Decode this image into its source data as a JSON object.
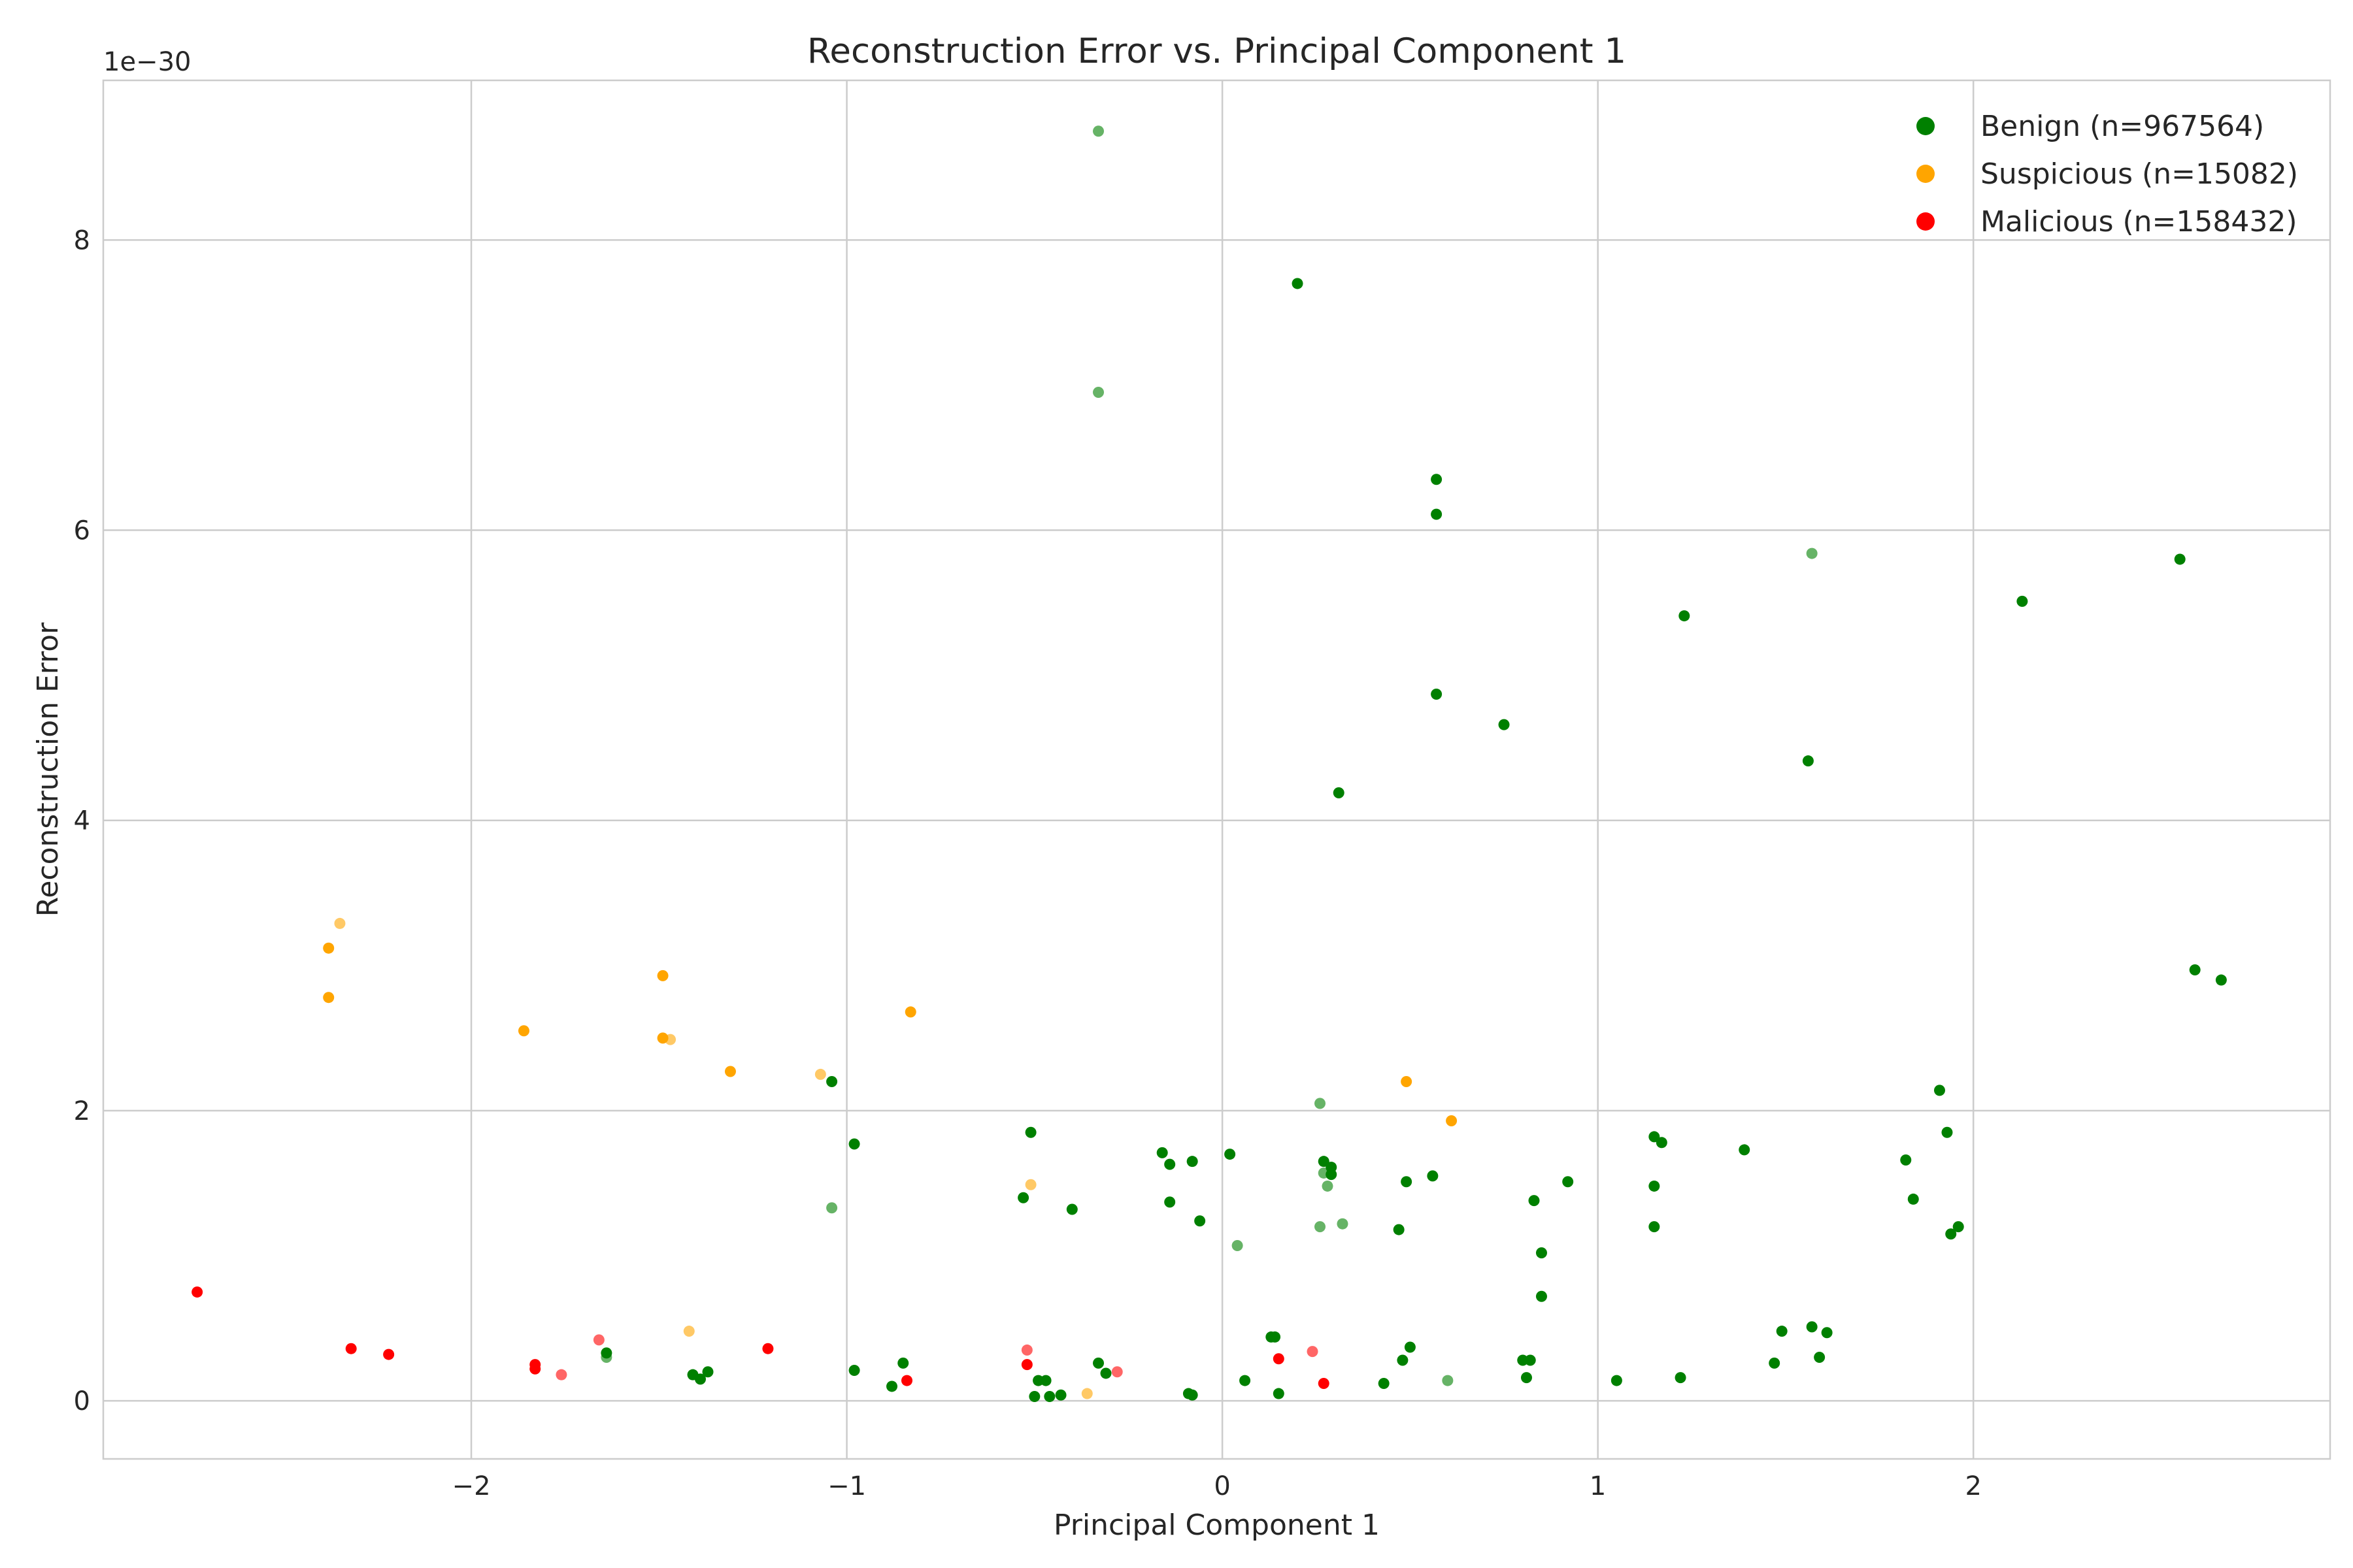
{
  "chart_data": {
    "type": "scatter",
    "title": "Reconstruction Error vs. Principal Component 1",
    "xlabel": "Principal Component 1",
    "ylabel": "Reconstruction Error",
    "y_offset_label": "1e−30",
    "xlim": [
      -2.98,
      2.95
    ],
    "ylim": [
      -0.4,
      9.1
    ],
    "x_ticks": [
      {
        "value": -2,
        "label": "−2"
      },
      {
        "value": -1,
        "label": "−1"
      },
      {
        "value": 0,
        "label": "0"
      },
      {
        "value": 1,
        "label": "1"
      },
      {
        "value": 2,
        "label": "2"
      }
    ],
    "y_ticks": [
      {
        "value": 0,
        "label": "0"
      },
      {
        "value": 2,
        "label": "2"
      },
      {
        "value": 4,
        "label": "4"
      },
      {
        "value": 6,
        "label": "6"
      },
      {
        "value": 8,
        "label": "8"
      }
    ],
    "grid": true,
    "legend_position": "top-right",
    "series": [
      {
        "name": "Benign (n=967564)",
        "color": "#008000",
        "points": [
          [
            -0.33,
            8.75,
            0.6
          ],
          [
            0.2,
            7.7,
            1
          ],
          [
            -0.33,
            6.95,
            0.6
          ],
          [
            0.57,
            6.35,
            1
          ],
          [
            0.57,
            6.11,
            1
          ],
          [
            1.57,
            5.84,
            0.6
          ],
          [
            2.55,
            5.8,
            1
          ],
          [
            2.13,
            5.51,
            1
          ],
          [
            1.23,
            5.41,
            1
          ],
          [
            0.57,
            4.87,
            1
          ],
          [
            0.75,
            4.66,
            1
          ],
          [
            1.56,
            4.41,
            1
          ],
          [
            0.31,
            4.19,
            1
          ],
          [
            2.59,
            2.97,
            1
          ],
          [
            2.66,
            2.9,
            1
          ],
          [
            -1.04,
            2.2,
            1
          ],
          [
            1.91,
            2.14,
            1
          ],
          [
            0.26,
            2.05,
            0.6
          ],
          [
            -0.51,
            1.85,
            1
          ],
          [
            1.93,
            1.85,
            1
          ],
          [
            1.15,
            1.82,
            1
          ],
          [
            1.17,
            1.78,
            1
          ],
          [
            -0.98,
            1.77,
            1
          ],
          [
            1.39,
            1.73,
            1
          ],
          [
            -0.16,
            1.71,
            1
          ],
          [
            0.02,
            1.7,
            1
          ],
          [
            -0.08,
            1.65,
            1
          ],
          [
            0.27,
            1.65,
            1
          ],
          [
            -0.14,
            1.63,
            1
          ],
          [
            1.82,
            1.66,
            1
          ],
          [
            0.29,
            1.61,
            1
          ],
          [
            0.27,
            1.57,
            0.6
          ],
          [
            0.29,
            1.56,
            1
          ],
          [
            0.56,
            1.55,
            1
          ],
          [
            0.49,
            1.51,
            1
          ],
          [
            0.92,
            1.51,
            1
          ],
          [
            1.15,
            1.48,
            1
          ],
          [
            0.28,
            1.48,
            0.6
          ],
          [
            -0.53,
            1.4,
            1
          ],
          [
            0.83,
            1.38,
            1
          ],
          [
            1.84,
            1.39,
            1
          ],
          [
            -0.14,
            1.37,
            1
          ],
          [
            -1.04,
            1.33,
            0.6
          ],
          [
            -0.4,
            1.32,
            1
          ],
          [
            -0.06,
            1.24,
            1
          ],
          [
            0.32,
            1.22,
            0.6
          ],
          [
            0.26,
            1.2,
            0.6
          ],
          [
            1.15,
            1.2,
            1
          ],
          [
            1.96,
            1.2,
            1
          ],
          [
            0.47,
            1.18,
            1
          ],
          [
            1.94,
            1.15,
            1
          ],
          [
            0.04,
            1.07,
            0.6
          ],
          [
            0.85,
            1.02,
            1
          ],
          [
            0.85,
            0.72,
            1
          ],
          [
            1.57,
            0.51,
            1
          ],
          [
            1.49,
            0.48,
            1
          ],
          [
            1.61,
            0.47,
            1
          ],
          [
            0.13,
            0.44,
            1
          ],
          [
            0.14,
            0.44,
            1
          ],
          [
            0.5,
            0.37,
            1
          ],
          [
            -1.64,
            0.33,
            1
          ],
          [
            -1.64,
            0.3,
            0.6
          ],
          [
            1.59,
            0.3,
            1
          ],
          [
            0.48,
            0.28,
            1
          ],
          [
            0.8,
            0.28,
            1
          ],
          [
            0.82,
            0.28,
            1
          ],
          [
            1.47,
            0.26,
            1
          ],
          [
            -0.85,
            0.26,
            1
          ],
          [
            -0.33,
            0.26,
            1
          ],
          [
            -0.98,
            0.21,
            1
          ],
          [
            -1.37,
            0.2,
            1
          ],
          [
            -1.41,
            0.18,
            1
          ],
          [
            -0.31,
            0.19,
            1
          ],
          [
            -1.39,
            0.15,
            1
          ],
          [
            0.81,
            0.16,
            1
          ],
          [
            1.22,
            0.16,
            1
          ],
          [
            -0.49,
            0.14,
            1
          ],
          [
            -0.47,
            0.14,
            1
          ],
          [
            0.06,
            0.14,
            1
          ],
          [
            0.6,
            0.14,
            0.6
          ],
          [
            1.05,
            0.14,
            1
          ],
          [
            0.43,
            0.12,
            1
          ],
          [
            -0.88,
            0.1,
            1
          ],
          [
            0.15,
            0.05,
            1
          ],
          [
            -0.09,
            0.05,
            1
          ],
          [
            -0.08,
            0.04,
            1
          ],
          [
            -0.5,
            0.03,
            1
          ],
          [
            -0.46,
            0.03,
            1
          ],
          [
            -0.43,
            0.04,
            1
          ]
        ]
      },
      {
        "name": "Suspicious (n=15082)",
        "color": "#FFA500",
        "points": [
          [
            -2.35,
            3.29,
            0.6
          ],
          [
            -2.38,
            3.12,
            1
          ],
          [
            -2.38,
            2.78,
            1
          ],
          [
            -1.49,
            2.93,
            1
          ],
          [
            -0.83,
            2.68,
            1
          ],
          [
            -1.86,
            2.55,
            1
          ],
          [
            -1.49,
            2.5,
            1
          ],
          [
            -1.47,
            2.49,
            0.6
          ],
          [
            -1.31,
            2.27,
            1
          ],
          [
            -1.07,
            2.25,
            0.6
          ],
          [
            0.49,
            2.2,
            1
          ],
          [
            0.61,
            1.93,
            1
          ],
          [
            -0.51,
            1.49,
            0.6
          ],
          [
            -1.42,
            0.48,
            0.6
          ],
          [
            -0.36,
            0.05,
            0.6
          ]
        ]
      },
      {
        "name": "Malicious (n=158432)",
        "color": "#FF0000",
        "points": [
          [
            -2.73,
            0.75,
            1
          ],
          [
            -1.66,
            0.42,
            0.6
          ],
          [
            -2.32,
            0.36,
            1
          ],
          [
            -1.21,
            0.36,
            1
          ],
          [
            -0.52,
            0.35,
            0.6
          ],
          [
            -2.22,
            0.32,
            1
          ],
          [
            0.24,
            0.34,
            0.6
          ],
          [
            0.15,
            0.29,
            1
          ],
          [
            -1.83,
            0.25,
            1
          ],
          [
            -1.83,
            0.22,
            1
          ],
          [
            -0.52,
            0.25,
            1
          ],
          [
            -0.28,
            0.2,
            0.6
          ],
          [
            -1.76,
            0.18,
            0.6
          ],
          [
            -0.84,
            0.14,
            1
          ],
          [
            0.27,
            0.12,
            1
          ]
        ]
      }
    ]
  }
}
